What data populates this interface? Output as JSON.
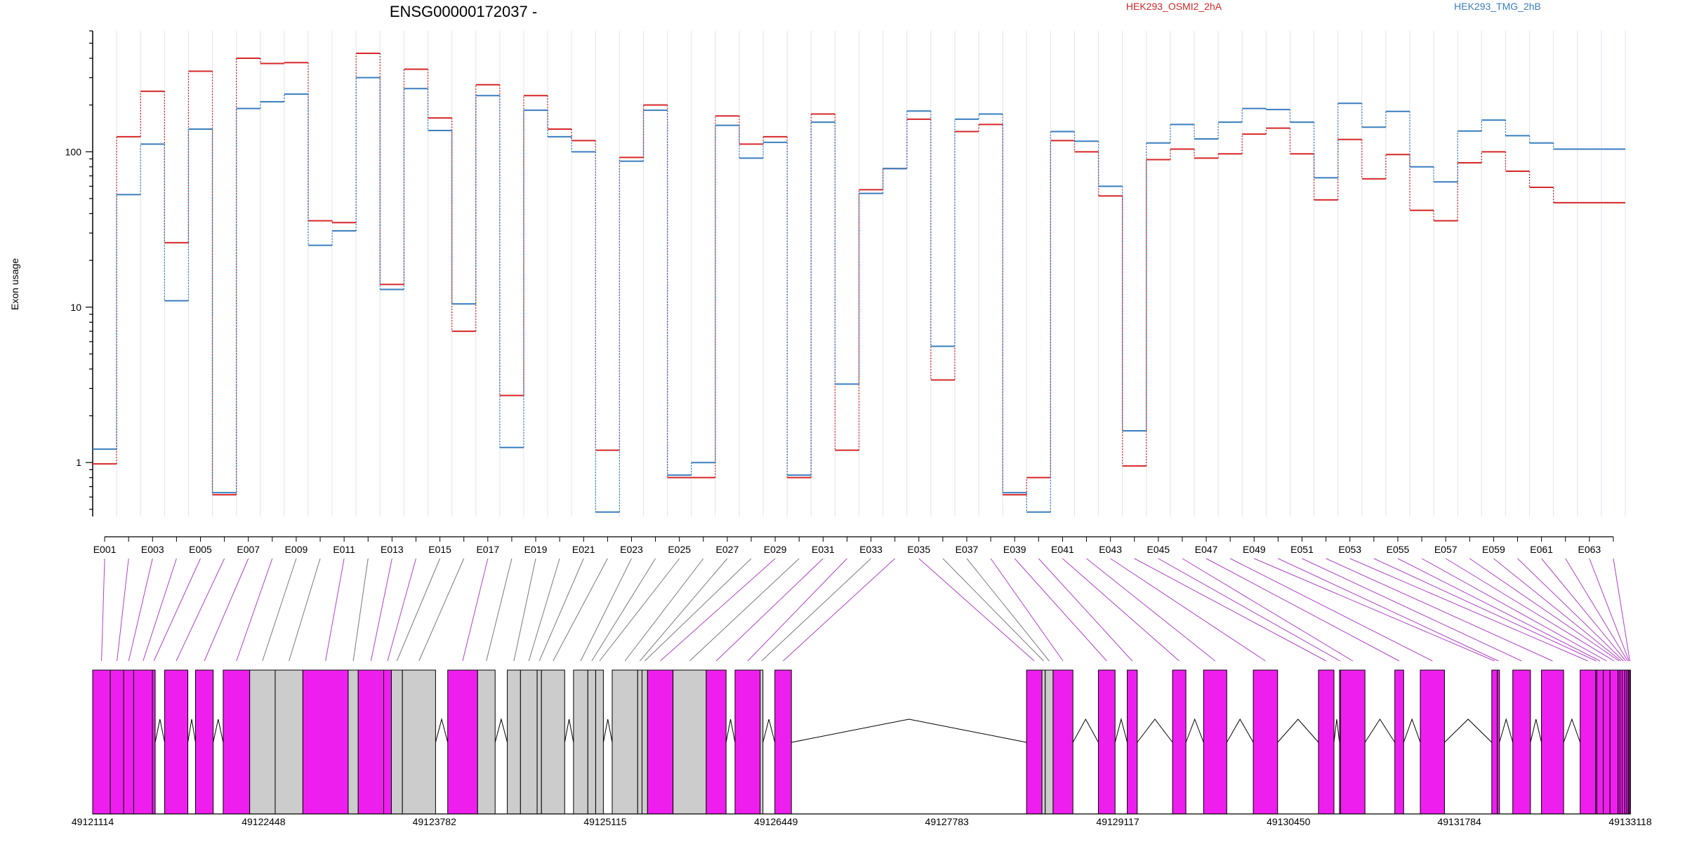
{
  "chart_data": {
    "type": "line",
    "title": "ENSG00000172037 -",
    "ylabel": "Exon usage",
    "yscale": "log",
    "ylim": [
      0.45,
      600
    ],
    "yticks": [
      1,
      10,
      100
    ],
    "ytick_labels": [
      "1",
      "10",
      "100"
    ],
    "grid": "vertical",
    "legend_position": "top",
    "exons": [
      "E001",
      "E002",
      "E003",
      "E004",
      "E005",
      "E006",
      "E007",
      "E008",
      "E009",
      "E010",
      "E011",
      "E012",
      "E013",
      "E014",
      "E015",
      "E016",
      "E017",
      "E018",
      "E019",
      "E020",
      "E021",
      "E022",
      "E023",
      "E024",
      "E025",
      "E026",
      "E027",
      "E028",
      "E029",
      "E030",
      "E031",
      "E032",
      "E033",
      "E034",
      "E035",
      "E036",
      "E037",
      "E038",
      "E039",
      "E040",
      "E041",
      "E042",
      "E043",
      "E044",
      "E045",
      "E046",
      "E047",
      "E048",
      "E049",
      "E050",
      "E051",
      "E052",
      "E053",
      "E054",
      "E055",
      "E056",
      "E057",
      "E058",
      "E059",
      "E060",
      "E061",
      "E062",
      "E063",
      "E064"
    ],
    "xtick_labels": [
      "E001",
      "E003",
      "E005",
      "E007",
      "E009",
      "E011",
      "E013",
      "E015",
      "E017",
      "E019",
      "E021",
      "E023",
      "E025",
      "E027",
      "E029",
      "E031",
      "E033",
      "E035",
      "E037",
      "E039",
      "E041",
      "E043",
      "E045",
      "E047",
      "E049",
      "E051",
      "E053",
      "E055",
      "E057",
      "E059",
      "E061",
      "E063"
    ],
    "series": [
      {
        "name": "HEK293_OSMI2_2hA",
        "color": "#d62728",
        "values": [
          0.98,
          125,
          245,
          26,
          330,
          0.62,
          400,
          370,
          375,
          36,
          35,
          430,
          14,
          340,
          165,
          7,
          270,
          2.7,
          230,
          140,
          118,
          1.2,
          92,
          200,
          0.8,
          0.8,
          170,
          112,
          125,
          0.8,
          175,
          1.2,
          57,
          78,
          162,
          3.4,
          135,
          150,
          0.62,
          0.8,
          118,
          100,
          52,
          0.95,
          89,
          104,
          91,
          97,
          130,
          142,
          97,
          49,
          120,
          67,
          96,
          42,
          36,
          85,
          100,
          75,
          59,
          47,
          47,
          47
        ]
      },
      {
        "name": "HEK293_TMG_2hB",
        "color": "#3a7ebf",
        "values": [
          1.22,
          53,
          112,
          11,
          140,
          0.64,
          190,
          210,
          235,
          25,
          31,
          300,
          13,
          255,
          137,
          10.5,
          230,
          1.25,
          185,
          125,
          100,
          0.48,
          87,
          185,
          0.83,
          1.0,
          148,
          91,
          115,
          0.83,
          155,
          3.2,
          54,
          78,
          183,
          5.6,
          162,
          175,
          0.64,
          0.48,
          135,
          117,
          60,
          1.6,
          114,
          150,
          121,
          155,
          190,
          187,
          155,
          68,
          205,
          144,
          182,
          80,
          64,
          136,
          160,
          127,
          114,
          104,
          104,
          104
        ]
      }
    ]
  },
  "gene_model": {
    "coordinate_labels": [
      "49121114",
      "49122448",
      "49123782",
      "49125115",
      "49126449",
      "49127783",
      "49129117",
      "49130450",
      "49131784",
      "49133118"
    ],
    "coordinate_values": [
      49121114,
      49122448,
      49123782,
      49125115,
      49126449,
      49127783,
      49129117,
      49130450,
      49131784,
      49133118
    ],
    "exon_color_differential": "#ee1fee",
    "exon_color_nondifferential": "#cccccc",
    "exons": [
      {
        "id": "E001",
        "start": 49121114,
        "end": 49121252,
        "status": "differential"
      },
      {
        "id": "E002",
        "start": 49121252,
        "end": 49121356,
        "status": "differential"
      },
      {
        "id": "E003",
        "start": 49121356,
        "end": 49121434,
        "status": "differential"
      },
      {
        "id": "E004",
        "start": 49121434,
        "end": 49121581,
        "status": "differential"
      },
      {
        "id": "E005",
        "start": 49121581,
        "end": 49121602,
        "status": "differential"
      },
      {
        "id": "E006",
        "start": 49121676,
        "end": 49121857,
        "status": "differential"
      },
      {
        "id": "E007",
        "start": 49121917,
        "end": 49122055,
        "status": "differential"
      },
      {
        "id": "E008",
        "start": 49122133,
        "end": 49122340,
        "status": "differential"
      },
      {
        "id": "E009",
        "start": 49122340,
        "end": 49122539,
        "status": "nondifferential"
      },
      {
        "id": "E010",
        "start": 49122539,
        "end": 49122755,
        "status": "nondifferential"
      },
      {
        "id": "E011",
        "start": 49122755,
        "end": 49123109,
        "status": "differential"
      },
      {
        "id": "E012",
        "start": 49123109,
        "end": 49123187,
        "status": "nondifferential"
      },
      {
        "id": "E013",
        "start": 49123187,
        "end": 49123386,
        "status": "differential"
      },
      {
        "id": "E014",
        "start": 49123386,
        "end": 49123446,
        "status": "differential"
      },
      {
        "id": "E015",
        "start": 49123446,
        "end": 49123532,
        "status": "nondifferential"
      },
      {
        "id": "E016",
        "start": 49123532,
        "end": 49123791,
        "status": "nondifferential"
      },
      {
        "id": "E017",
        "start": 49123886,
        "end": 49124119,
        "status": "differential"
      },
      {
        "id": "E018",
        "start": 49124119,
        "end": 49124256,
        "status": "nondifferential"
      },
      {
        "id": "E019",
        "start": 49124351,
        "end": 49124454,
        "status": "nondifferential"
      },
      {
        "id": "E020",
        "start": 49124454,
        "end": 49124584,
        "status": "nondifferential"
      },
      {
        "id": "E021",
        "start": 49124584,
        "end": 49124618,
        "status": "nondifferential"
      },
      {
        "id": "E022",
        "start": 49124618,
        "end": 49124799,
        "status": "nondifferential"
      },
      {
        "id": "E023",
        "start": 49124868,
        "end": 49124980,
        "status": "nondifferential"
      },
      {
        "id": "E024",
        "start": 49124980,
        "end": 49125041,
        "status": "nondifferential"
      },
      {
        "id": "E025",
        "start": 49125041,
        "end": 49125101,
        "status": "nondifferential"
      },
      {
        "id": "E026",
        "start": 49125170,
        "end": 49125369,
        "status": "nondifferential"
      },
      {
        "id": "E027",
        "start": 49125369,
        "end": 49125403,
        "status": "nondifferential"
      },
      {
        "id": "E028",
        "start": 49125403,
        "end": 49125446,
        "status": "nondifferential"
      },
      {
        "id": "E029",
        "start": 49125446,
        "end": 49125645,
        "status": "differential"
      },
      {
        "id": "E030",
        "start": 49125645,
        "end": 49125904,
        "status": "nondifferential"
      },
      {
        "id": "E031",
        "start": 49125904,
        "end": 49126059,
        "status": "differential"
      },
      {
        "id": "E032",
        "start": 49126129,
        "end": 49126327,
        "status": "differential"
      },
      {
        "id": "E033",
        "start": 49126325,
        "end": 49126347,
        "status": "nondifferential"
      },
      {
        "id": "E034",
        "start": 49126440,
        "end": 49126569,
        "status": "differential"
      },
      {
        "id": "E035",
        "start": 49128405,
        "end": 49128525,
        "status": "differential"
      },
      {
        "id": "E036",
        "start": 49128525,
        "end": 49128551,
        "status": "nondifferential"
      },
      {
        "id": "E037",
        "start": 49128551,
        "end": 49128612,
        "status": "nondifferential"
      },
      {
        "id": "E038",
        "start": 49128612,
        "end": 49128767,
        "status": "differential"
      },
      {
        "id": "E039",
        "start": 49128966,
        "end": 49129096,
        "status": "differential"
      },
      {
        "id": "E040",
        "start": 49129191,
        "end": 49129269,
        "status": "differential"
      },
      {
        "id": "E041",
        "start": 49129545,
        "end": 49129649,
        "status": "differential"
      },
      {
        "id": "E042",
        "start": 49129787,
        "end": 49129968,
        "status": "differential"
      },
      {
        "id": "E043",
        "start": 49130175,
        "end": 49130365,
        "status": "differential"
      },
      {
        "id": "E044",
        "start": 49130684,
        "end": 49130805,
        "status": "differential"
      },
      {
        "id": "E045",
        "start": 49130848,
        "end": 49130857,
        "status": "differential"
      },
      {
        "id": "E046",
        "start": 49130857,
        "end": 49131047,
        "status": "differential"
      },
      {
        "id": "E047",
        "start": 49131280,
        "end": 49131349,
        "status": "differential"
      },
      {
        "id": "E048",
        "start": 49131479,
        "end": 49131668,
        "status": "differential"
      },
      {
        "id": "E049",
        "start": 49132037,
        "end": 49132080,
        "status": "differential"
      },
      {
        "id": "E050",
        "start": 49132080,
        "end": 49132097,
        "status": "differential"
      },
      {
        "id": "E051",
        "start": 49132201,
        "end": 49132339,
        "status": "differential"
      },
      {
        "id": "E052",
        "start": 49132425,
        "end": 49132598,
        "status": "differential"
      },
      {
        "id": "E053",
        "start": 49132727,
        "end": 49132848,
        "status": "differential"
      },
      {
        "id": "E054",
        "start": 49132848,
        "end": 49132857,
        "status": "differential"
      },
      {
        "id": "E055",
        "start": 49132857,
        "end": 49132908,
        "status": "differential"
      },
      {
        "id": "E056",
        "start": 49132908,
        "end": 49132960,
        "status": "differential"
      },
      {
        "id": "E057",
        "start": 49132960,
        "end": 49133023,
        "status": "differential"
      },
      {
        "id": "E058",
        "start": 49133023,
        "end": 49133038,
        "status": "differential"
      },
      {
        "id": "E059",
        "start": 49133038,
        "end": 49133055,
        "status": "differential"
      },
      {
        "id": "E060",
        "start": 49133055,
        "end": 49133075,
        "status": "differential"
      },
      {
        "id": "E061",
        "start": 49133075,
        "end": 49133092,
        "status": "differential"
      },
      {
        "id": "E062",
        "start": 49133092,
        "end": 49133105,
        "status": "differential"
      },
      {
        "id": "E063",
        "start": 49133105,
        "end": 49133112,
        "status": "differential"
      },
      {
        "id": "E064",
        "start": 49133112,
        "end": 49133118,
        "status": "differential"
      }
    ]
  }
}
